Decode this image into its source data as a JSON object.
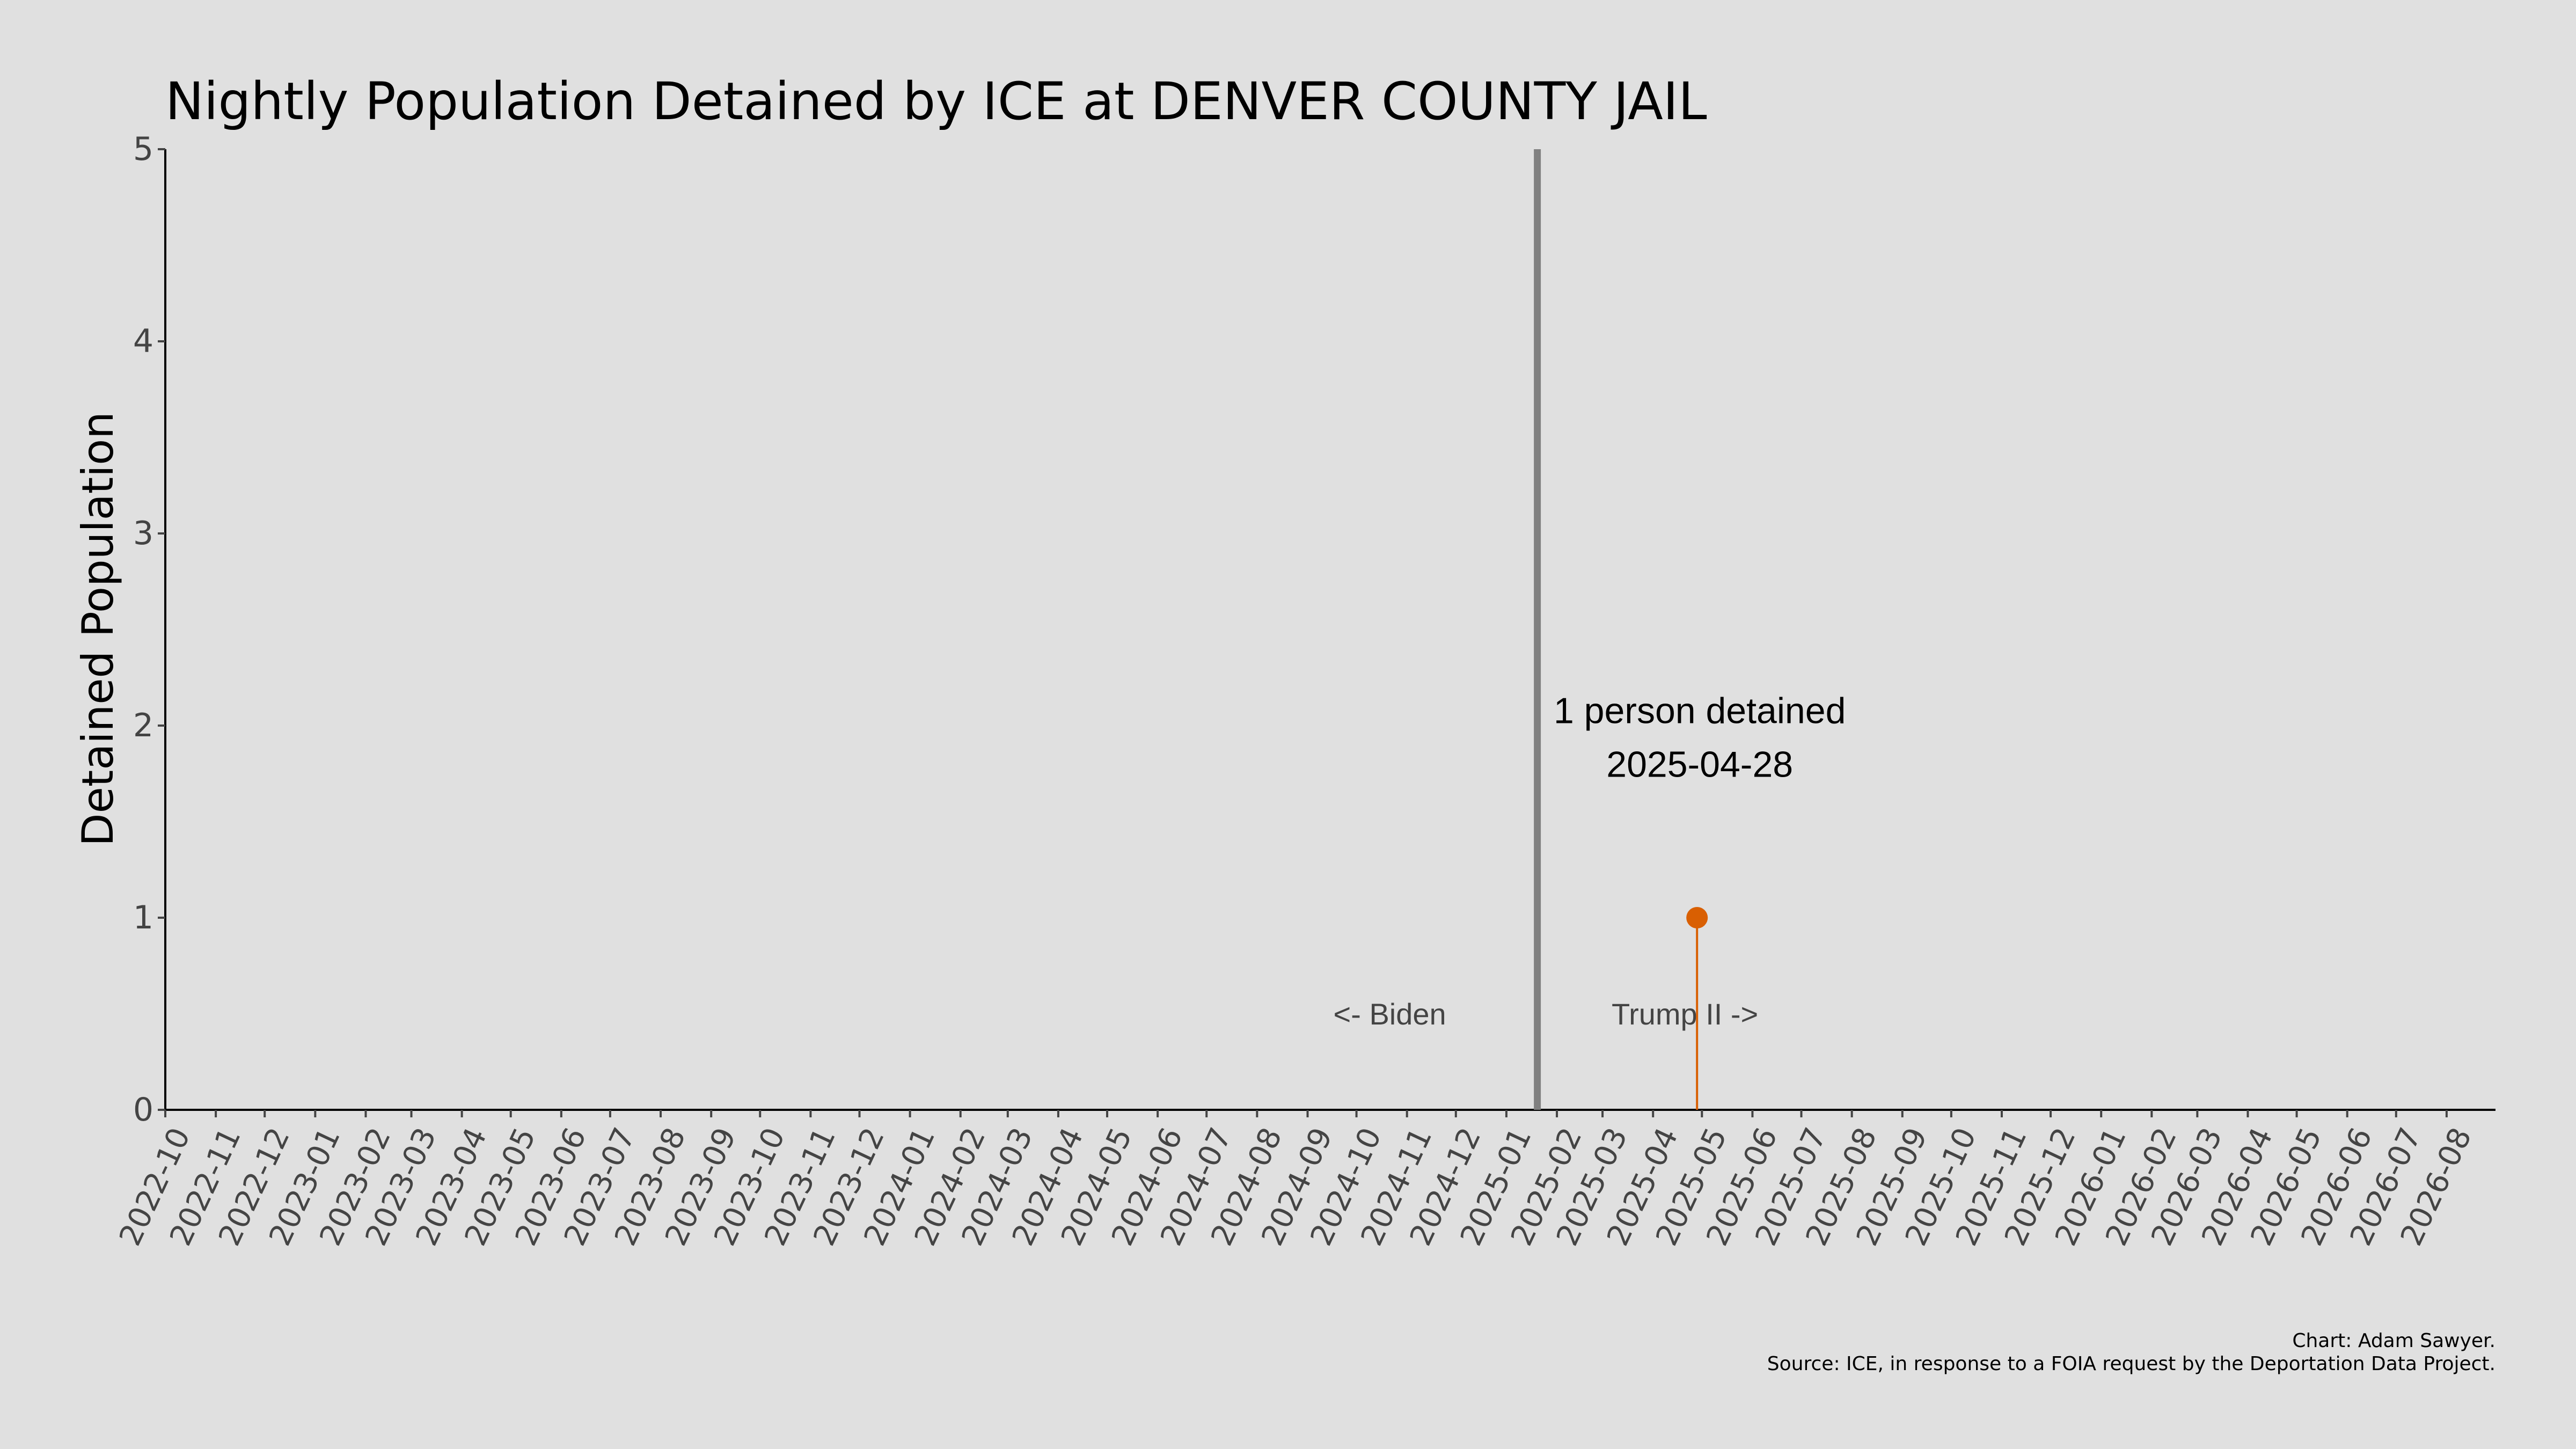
{
  "chart_data": {
    "type": "scatter",
    "title": "Nightly Population Detained by ICE at DENVER COUNTY JAIL",
    "xlabel": "",
    "ylabel": "Detained Population",
    "x_axis": {
      "type": "date",
      "range": [
        "2022-10-01",
        "2026-08-31"
      ],
      "tick_labels": [
        "2022-10",
        "2022-11",
        "2022-12",
        "2023-01",
        "2023-02",
        "2023-03",
        "2023-04",
        "2023-05",
        "2023-06",
        "2023-07",
        "2023-08",
        "2023-09",
        "2023-10",
        "2023-11",
        "2023-12",
        "2024-01",
        "2024-02",
        "2024-03",
        "2024-04",
        "2024-05",
        "2024-06",
        "2024-07",
        "2024-08",
        "2024-09",
        "2024-10",
        "2024-11",
        "2024-12",
        "2025-01",
        "2025-02",
        "2025-03",
        "2025-04",
        "2025-05",
        "2025-06",
        "2025-07",
        "2025-08",
        "2025-09",
        "2025-10",
        "2025-11",
        "2025-12",
        "2026-01",
        "2026-02",
        "2026-03",
        "2026-04",
        "2026-05",
        "2026-06",
        "2026-07",
        "2026-08"
      ]
    },
    "y_axis": {
      "range": [
        0,
        5
      ],
      "ticks": [
        0,
        1,
        2,
        3,
        4,
        5
      ]
    },
    "grid": false,
    "series": [
      {
        "color": "#d95f02",
        "points": [
          {
            "x": "2025-04-28",
            "y": 1
          }
        ]
      }
    ],
    "vertical_line": {
      "x": "2025-01-20",
      "color": "#808080"
    },
    "annotations": {
      "peak_label": "1 person detained",
      "peak_date": "2025-04-28",
      "before_label": "<- Biden",
      "after_label": "Trump II ->"
    },
    "credits": {
      "line1": "Chart: Adam Sawyer.",
      "line2": "Source: ICE, in response to a FOIA request by the Deportation Data Project."
    }
  }
}
